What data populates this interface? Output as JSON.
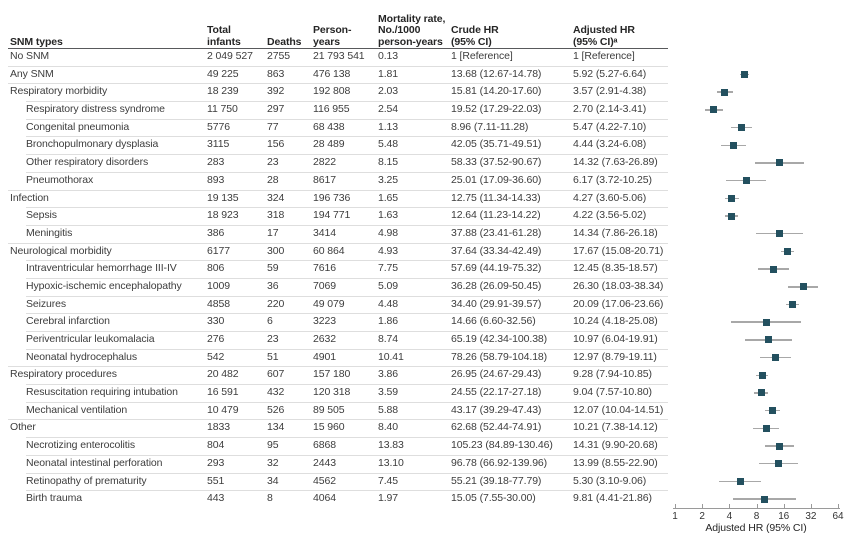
{
  "figure": {
    "columns": {
      "snm": "SNM types",
      "total": "Total\ninfants",
      "deaths": "Deaths",
      "py": "Person-\nyears",
      "rate": "Mortality rate,\nNo./1000\nperson-years",
      "crude": "Crude HR\n(95% CI)",
      "adjusted": "Adjusted HR\n(95% CI)ᵃ"
    }
  },
  "chart_data": {
    "type": "forest",
    "scale": "log2",
    "xlabel": "Adjusted HR (95% CI)",
    "x_ticks": [
      1,
      2,
      4,
      8,
      16,
      32,
      64
    ],
    "xlim": [
      1,
      64
    ],
    "marker_color": "#23505f",
    "ci_color": "#a8a8a8",
    "rows": [
      {
        "label": "No SNM",
        "indent": 0,
        "total": "2 049 527",
        "deaths": "2755",
        "py": "21 793 541",
        "rate": "0.13",
        "crude": "1 [Reference]",
        "adjusted": "1 [Reference]",
        "est": null,
        "lo": null,
        "hi": null
      },
      {
        "label": "Any SNM",
        "indent": 0,
        "total": "49 225",
        "deaths": "863",
        "py": "476 138",
        "rate": "1.81",
        "crude": "13.68 (12.67-14.78)",
        "adjusted": "5.92 (5.27-6.64)",
        "est": 5.92,
        "lo": 5.27,
        "hi": 6.64
      },
      {
        "label": "Respiratory morbidity",
        "indent": 0,
        "total": "18 239",
        "deaths": "392",
        "py": "192 808",
        "rate": "2.03",
        "crude": "15.81 (14.20-17.60)",
        "adjusted": "3.57 (2.91-4.38)",
        "est": 3.57,
        "lo": 2.91,
        "hi": 4.38
      },
      {
        "label": "Respiratory distress syndrome",
        "indent": 1,
        "total": "11 750",
        "deaths": "297",
        "py": "116 955",
        "rate": "2.54",
        "crude": "19.52 (17.29-22.03)",
        "adjusted": "2.70 (2.14-3.41)",
        "est": 2.7,
        "lo": 2.14,
        "hi": 3.41
      },
      {
        "label": "Congenital pneumonia",
        "indent": 1,
        "total": "5776",
        "deaths": "77",
        "py": "68 438",
        "rate": "1.13",
        "crude": "8.96 (7.11-11.28)",
        "adjusted": "5.47 (4.22-7.10)",
        "est": 5.47,
        "lo": 4.22,
        "hi": 7.1
      },
      {
        "label": "Bronchopulmonary dysplasia",
        "indent": 1,
        "total": "3115",
        "deaths": "156",
        "py": "28 489",
        "rate": "5.48",
        "crude": "42.05 (35.71-49.51)",
        "adjusted": "4.44 (3.24-6.08)",
        "est": 4.44,
        "lo": 3.24,
        "hi": 6.08
      },
      {
        "label": "Other respiratory disorders",
        "indent": 1,
        "total": "283",
        "deaths": "23",
        "py": "2822",
        "rate": "8.15",
        "crude": "58.33 (37.52-90.67)",
        "adjusted": "14.32 (7.63-26.89)",
        "est": 14.32,
        "lo": 7.63,
        "hi": 26.89
      },
      {
        "label": "Pneumothorax",
        "indent": 1,
        "total": "893",
        "deaths": "28",
        "py": "8617",
        "rate": "3.25",
        "crude": "25.01 (17.09-36.60)",
        "adjusted": "6.17 (3.72-10.25)",
        "est": 6.17,
        "lo": 3.72,
        "hi": 10.25
      },
      {
        "label": "Infection",
        "indent": 0,
        "total": "19 135",
        "deaths": "324",
        "py": "196 736",
        "rate": "1.65",
        "crude": "12.75 (11.34-14.33)",
        "adjusted": "4.27 (3.60-5.06)",
        "est": 4.27,
        "lo": 3.6,
        "hi": 5.06
      },
      {
        "label": "Sepsis",
        "indent": 1,
        "total": "18 923",
        "deaths": "318",
        "py": "194 771",
        "rate": "1.63",
        "crude": "12.64 (11.23-14.22)",
        "adjusted": "4.22 (3.56-5.02)",
        "est": 4.22,
        "lo": 3.56,
        "hi": 5.02
      },
      {
        "label": "Meningitis",
        "indent": 1,
        "total": "386",
        "deaths": "17",
        "py": "3414",
        "rate": "4.98",
        "crude": "37.88 (23.41-61.28)",
        "adjusted": "14.34 (7.86-26.18)",
        "est": 14.34,
        "lo": 7.86,
        "hi": 26.18
      },
      {
        "label": "Neurological morbidity",
        "indent": 0,
        "total": "6177",
        "deaths": "300",
        "py": "60 864",
        "rate": "4.93",
        "crude": "37.64 (33.34-42.49)",
        "adjusted": "17.67 (15.08-20.71)",
        "est": 17.67,
        "lo": 15.08,
        "hi": 20.71
      },
      {
        "label": "Intraventricular hemorrhage III-IV",
        "indent": 1,
        "total": "806",
        "deaths": "59",
        "py": "7616",
        "rate": "7.75",
        "crude": "57.69 (44.19-75.32)",
        "adjusted": "12.45 (8.35-18.57)",
        "est": 12.45,
        "lo": 8.35,
        "hi": 18.57
      },
      {
        "label": "Hypoxic-ischemic encephalopathy",
        "indent": 1,
        "total": "1009",
        "deaths": "36",
        "py": "7069",
        "rate": "5.09",
        "crude": "36.28 (26.09-50.45)",
        "adjusted": "26.30 (18.03-38.34)",
        "est": 26.3,
        "lo": 18.03,
        "hi": 38.34
      },
      {
        "label": "Seizures",
        "indent": 1,
        "total": "4858",
        "deaths": "220",
        "py": "49 079",
        "rate": "4.48",
        "crude": "34.40 (29.91-39.57)",
        "adjusted": "20.09 (17.06-23.66)",
        "est": 20.09,
        "lo": 17.06,
        "hi": 23.66
      },
      {
        "label": "Cerebral infarction",
        "indent": 1,
        "total": "330",
        "deaths": "6",
        "py": "3223",
        "rate": "1.86",
        "crude": "14.66 (6.60-32.56)",
        "adjusted": "10.24 (4.18-25.08)",
        "est": 10.24,
        "lo": 4.18,
        "hi": 25.08
      },
      {
        "label": "Periventricular leukomalacia",
        "indent": 1,
        "total": "276",
        "deaths": "23",
        "py": "2632",
        "rate": "8.74",
        "crude": "65.19 (42.34-100.38)",
        "adjusted": "10.97 (6.04-19.91)",
        "est": 10.97,
        "lo": 6.04,
        "hi": 19.91
      },
      {
        "label": "Neonatal hydrocephalus",
        "indent": 1,
        "total": "542",
        "deaths": "51",
        "py": "4901",
        "rate": "10.41",
        "crude": "78.26 (58.79-104.18)",
        "adjusted": "12.97 (8.79-19.11)",
        "est": 12.97,
        "lo": 8.79,
        "hi": 19.11
      },
      {
        "label": "Respiratory procedures",
        "indent": 0,
        "total": "20 482",
        "deaths": "607",
        "py": "157 180",
        "rate": "3.86",
        "crude": "26.95 (24.67-29.43)",
        "adjusted": "9.28 (7.94-10.85)",
        "est": 9.28,
        "lo": 7.94,
        "hi": 10.85
      },
      {
        "label": "Resuscitation requiring intubation",
        "indent": 1,
        "total": "16 591",
        "deaths": "432",
        "py": "120 318",
        "rate": "3.59",
        "crude": "24.55 (22.17-27.18)",
        "adjusted": "9.04 (7.57-10.80)",
        "est": 9.04,
        "lo": 7.57,
        "hi": 10.8
      },
      {
        "label": "Mechanical ventilation",
        "indent": 1,
        "total": "10 479",
        "deaths": "526",
        "py": "89 505",
        "rate": "5.88",
        "crude": "43.17 (39.29-47.43)",
        "adjusted": "12.07 (10.04-14.51)",
        "est": 12.07,
        "lo": 10.04,
        "hi": 14.51
      },
      {
        "label": "Other",
        "indent": 0,
        "total": "1833",
        "deaths": "134",
        "py": "15 960",
        "rate": "8.40",
        "crude": "62.68 (52.44-74.91)",
        "adjusted": "10.21 (7.38-14.12)",
        "est": 10.21,
        "lo": 7.38,
        "hi": 14.12
      },
      {
        "label": "Necrotizing enterocolitis",
        "indent": 1,
        "total": "804",
        "deaths": "95",
        "py": "6868",
        "rate": "13.83",
        "crude": "105.23 (84.89-130.46)",
        "adjusted": "14.31 (9.90-20.68)",
        "est": 14.31,
        "lo": 9.9,
        "hi": 20.68
      },
      {
        "label": "Neonatal intestinal perforation",
        "indent": 1,
        "total": "293",
        "deaths": "32",
        "py": "2443",
        "rate": "13.10",
        "crude": "96.78 (66.92-139.96)",
        "adjusted": "13.99 (8.55-22.90)",
        "est": 13.99,
        "lo": 8.55,
        "hi": 22.9
      },
      {
        "label": "Retinopathy of prematurity",
        "indent": 1,
        "total": "551",
        "deaths": "34",
        "py": "4562",
        "rate": "7.45",
        "crude": "55.21 (39.18-77.79)",
        "adjusted": "5.30 (3.10-9.06)",
        "est": 5.3,
        "lo": 3.1,
        "hi": 9.06
      },
      {
        "label": "Birth trauma",
        "indent": 1,
        "total": "443",
        "deaths": "8",
        "py": "4064",
        "rate": "1.97",
        "crude": "15.05 (7.55-30.00)",
        "adjusted": "9.81 (4.41-21.86)",
        "est": 9.81,
        "lo": 4.41,
        "hi": 21.86
      }
    ]
  }
}
